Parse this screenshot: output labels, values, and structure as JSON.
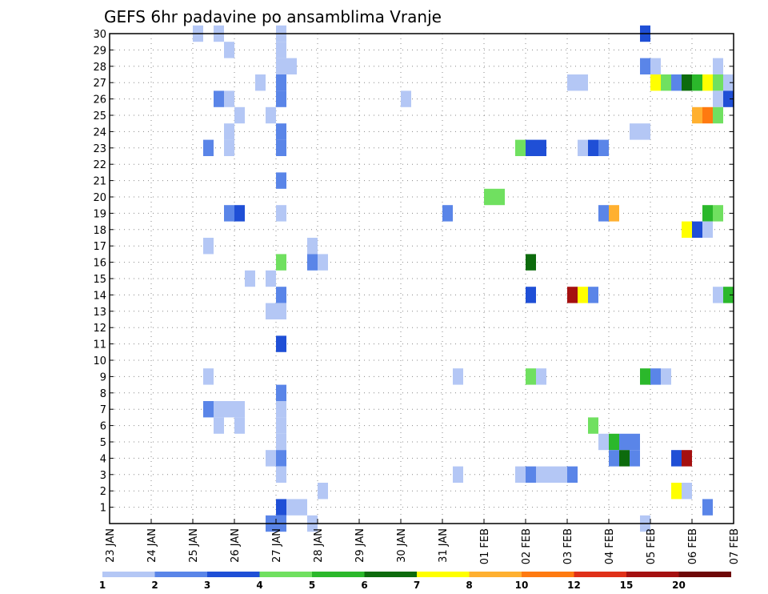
{
  "chart_data": {
    "type": "heatmap",
    "title": "GEFS 6hr padavine po ansamblima Vranje",
    "xlabel": "",
    "ylabel": "",
    "x_ticks": [
      "23 JAN",
      "24 JAN",
      "25 JAN",
      "26 JAN",
      "27 JAN",
      "28 JAN",
      "29 JAN",
      "30 JAN",
      "31 JAN",
      "01 FEB",
      "02 FEB",
      "03 FEB",
      "04 FEB",
      "05 FEB",
      "06 FEB",
      "07 FEB"
    ],
    "y_ticks": [
      1,
      2,
      3,
      4,
      5,
      6,
      7,
      8,
      9,
      10,
      11,
      12,
      13,
      14,
      15,
      16,
      17,
      18,
      19,
      20,
      21,
      22,
      23,
      24,
      25,
      26,
      27,
      28,
      29,
      30
    ],
    "x_range_days": [
      0,
      15
    ],
    "y_range": [
      0,
      30
    ],
    "grid": true,
    "legend_position": "bottom",
    "legend": {
      "labels": [
        "1",
        "2",
        "3",
        "4",
        "5",
        "6",
        "7",
        "8",
        "10",
        "12",
        "15",
        "20"
      ],
      "colors": [
        "#b4c7f5",
        "#5a85e8",
        "#1f4fd6",
        "#70e060",
        "#2bb82b",
        "#0d6b0d",
        "#ffff00",
        "#ffb030",
        "#ff7a10",
        "#e03018",
        "#a51010",
        "#6e0808"
      ]
    },
    "cells": [
      {
        "d": 2.125,
        "m": 30,
        "v": 1
      },
      {
        "d": 2.625,
        "m": 30,
        "v": 1
      },
      {
        "d": 4.125,
        "m": 30,
        "v": 1
      },
      {
        "d": 12.875,
        "m": 30,
        "v": 3
      },
      {
        "d": 2.875,
        "m": 29,
        "v": 1
      },
      {
        "d": 4.125,
        "m": 29,
        "v": 1
      },
      {
        "d": 4.125,
        "m": 28,
        "v": 1
      },
      {
        "d": 4.375,
        "m": 28,
        "v": 1
      },
      {
        "d": 12.875,
        "m": 28,
        "v": 2
      },
      {
        "d": 13.125,
        "m": 28,
        "v": 1
      },
      {
        "d": 14.625,
        "m": 28,
        "v": 1
      },
      {
        "d": 3.625,
        "m": 27,
        "v": 1
      },
      {
        "d": 4.125,
        "m": 27,
        "v": 2
      },
      {
        "d": 11.125,
        "m": 27,
        "v": 1
      },
      {
        "d": 11.375,
        "m": 27,
        "v": 1
      },
      {
        "d": 13.125,
        "m": 27,
        "v": 7
      },
      {
        "d": 13.375,
        "m": 27,
        "v": 4
      },
      {
        "d": 13.625,
        "m": 27,
        "v": 2
      },
      {
        "d": 13.875,
        "m": 27,
        "v": 6
      },
      {
        "d": 14.125,
        "m": 27,
        "v": 5
      },
      {
        "d": 14.375,
        "m": 27,
        "v": 7
      },
      {
        "d": 14.625,
        "m": 27,
        "v": 4
      },
      {
        "d": 14.875,
        "m": 27,
        "v": 1
      },
      {
        "d": 2.625,
        "m": 26,
        "v": 2
      },
      {
        "d": 2.875,
        "m": 26,
        "v": 1
      },
      {
        "d": 4.125,
        "m": 26,
        "v": 2
      },
      {
        "d": 7.125,
        "m": 26,
        "v": 1
      },
      {
        "d": 14.625,
        "m": 26,
        "v": 1
      },
      {
        "d": 14.875,
        "m": 26,
        "v": 3
      },
      {
        "d": 3.125,
        "m": 25,
        "v": 1
      },
      {
        "d": 3.875,
        "m": 25,
        "v": 1
      },
      {
        "d": 14.125,
        "m": 25,
        "v": 8
      },
      {
        "d": 14.375,
        "m": 25,
        "v": 10
      },
      {
        "d": 14.625,
        "m": 25,
        "v": 4
      },
      {
        "d": 2.875,
        "m": 24,
        "v": 1
      },
      {
        "d": 4.125,
        "m": 24,
        "v": 2
      },
      {
        "d": 12.625,
        "m": 24,
        "v": 1
      },
      {
        "d": 12.875,
        "m": 24,
        "v": 1
      },
      {
        "d": 2.375,
        "m": 23,
        "v": 2
      },
      {
        "d": 2.875,
        "m": 23,
        "v": 1
      },
      {
        "d": 4.125,
        "m": 23,
        "v": 2
      },
      {
        "d": 9.875,
        "m": 23,
        "v": 4
      },
      {
        "d": 10.125,
        "m": 23,
        "v": 3
      },
      {
        "d": 10.375,
        "m": 23,
        "v": 3
      },
      {
        "d": 11.375,
        "m": 23,
        "v": 1
      },
      {
        "d": 11.625,
        "m": 23,
        "v": 3
      },
      {
        "d": 11.875,
        "m": 23,
        "v": 2
      },
      {
        "d": 4.125,
        "m": 21,
        "v": 2
      },
      {
        "d": 9.125,
        "m": 20,
        "v": 4
      },
      {
        "d": 9.375,
        "m": 20,
        "v": 4
      },
      {
        "d": 2.875,
        "m": 19,
        "v": 2
      },
      {
        "d": 3.125,
        "m": 19,
        "v": 3
      },
      {
        "d": 4.125,
        "m": 19,
        "v": 1
      },
      {
        "d": 8.125,
        "m": 19,
        "v": 2
      },
      {
        "d": 11.875,
        "m": 19,
        "v": 2
      },
      {
        "d": 12.125,
        "m": 19,
        "v": 8
      },
      {
        "d": 14.375,
        "m": 19,
        "v": 5
      },
      {
        "d": 14.625,
        "m": 19,
        "v": 4
      },
      {
        "d": 13.875,
        "m": 18,
        "v": 7
      },
      {
        "d": 14.125,
        "m": 18,
        "v": 3
      },
      {
        "d": 14.375,
        "m": 18,
        "v": 1
      },
      {
        "d": 2.375,
        "m": 17,
        "v": 1
      },
      {
        "d": 4.875,
        "m": 17,
        "v": 1
      },
      {
        "d": 4.125,
        "m": 16,
        "v": 4
      },
      {
        "d": 4.875,
        "m": 16,
        "v": 2
      },
      {
        "d": 5.125,
        "m": 16,
        "v": 1
      },
      {
        "d": 10.125,
        "m": 16,
        "v": 6
      },
      {
        "d": 3.375,
        "m": 15,
        "v": 1
      },
      {
        "d": 3.875,
        "m": 15,
        "v": 1
      },
      {
        "d": 4.125,
        "m": 14,
        "v": 2
      },
      {
        "d": 10.125,
        "m": 14,
        "v": 3
      },
      {
        "d": 11.125,
        "m": 14,
        "v": 15
      },
      {
        "d": 11.375,
        "m": 14,
        "v": 7
      },
      {
        "d": 11.625,
        "m": 14,
        "v": 2
      },
      {
        "d": 14.625,
        "m": 14,
        "v": 1
      },
      {
        "d": 14.875,
        "m": 14,
        "v": 5
      },
      {
        "d": 3.875,
        "m": 13,
        "v": 1
      },
      {
        "d": 4.125,
        "m": 13,
        "v": 1
      },
      {
        "d": 4.125,
        "m": 11,
        "v": 3
      },
      {
        "d": 2.375,
        "m": 9,
        "v": 1
      },
      {
        "d": 8.375,
        "m": 9,
        "v": 1
      },
      {
        "d": 10.125,
        "m": 9,
        "v": 4
      },
      {
        "d": 10.375,
        "m": 9,
        "v": 1
      },
      {
        "d": 12.875,
        "m": 9,
        "v": 5
      },
      {
        "d": 13.125,
        "m": 9,
        "v": 2
      },
      {
        "d": 13.375,
        "m": 9,
        "v": 1
      },
      {
        "d": 4.125,
        "m": 8,
        "v": 2
      },
      {
        "d": 2.375,
        "m": 7,
        "v": 2
      },
      {
        "d": 2.625,
        "m": 7,
        "v": 1
      },
      {
        "d": 2.875,
        "m": 7,
        "v": 1
      },
      {
        "d": 3.125,
        "m": 7,
        "v": 1
      },
      {
        "d": 4.125,
        "m": 7,
        "v": 1
      },
      {
        "d": 2.625,
        "m": 6,
        "v": 1
      },
      {
        "d": 3.125,
        "m": 6,
        "v": 1
      },
      {
        "d": 4.125,
        "m": 6,
        "v": 1
      },
      {
        "d": 11.625,
        "m": 6,
        "v": 4
      },
      {
        "d": 4.125,
        "m": 5,
        "v": 1
      },
      {
        "d": 11.875,
        "m": 5,
        "v": 1
      },
      {
        "d": 12.125,
        "m": 5,
        "v": 5
      },
      {
        "d": 12.375,
        "m": 5,
        "v": 2
      },
      {
        "d": 12.625,
        "m": 5,
        "v": 2
      },
      {
        "d": 3.875,
        "m": 4,
        "v": 1
      },
      {
        "d": 4.125,
        "m": 4,
        "v": 2
      },
      {
        "d": 12.125,
        "m": 4,
        "v": 2
      },
      {
        "d": 12.375,
        "m": 4,
        "v": 6
      },
      {
        "d": 12.625,
        "m": 4,
        "v": 2
      },
      {
        "d": 13.625,
        "m": 4,
        "v": 3
      },
      {
        "d": 13.875,
        "m": 4,
        "v": 15
      },
      {
        "d": 4.125,
        "m": 3,
        "v": 1
      },
      {
        "d": 8.375,
        "m": 3,
        "v": 1
      },
      {
        "d": 9.875,
        "m": 3,
        "v": 1
      },
      {
        "d": 10.125,
        "m": 3,
        "v": 2
      },
      {
        "d": 10.375,
        "m": 3,
        "v": 1
      },
      {
        "d": 10.625,
        "m": 3,
        "v": 1
      },
      {
        "d": 10.875,
        "m": 3,
        "v": 1
      },
      {
        "d": 11.125,
        "m": 3,
        "v": 2
      },
      {
        "d": 5.125,
        "m": 2,
        "v": 1
      },
      {
        "d": 13.625,
        "m": 2,
        "v": 7
      },
      {
        "d": 13.875,
        "m": 2,
        "v": 1
      },
      {
        "d": 4.125,
        "m": 1,
        "v": 3
      },
      {
        "d": 4.375,
        "m": 1,
        "v": 1
      },
      {
        "d": 4.625,
        "m": 1,
        "v": 1
      },
      {
        "d": 14.375,
        "m": 1,
        "v": 2
      },
      {
        "d": 3.875,
        "m": 0,
        "v": 2
      },
      {
        "d": 4.125,
        "m": 0,
        "v": 2
      },
      {
        "d": 4.875,
        "m": 0,
        "v": 1
      },
      {
        "d": 12.875,
        "m": 0,
        "v": 1
      }
    ]
  }
}
